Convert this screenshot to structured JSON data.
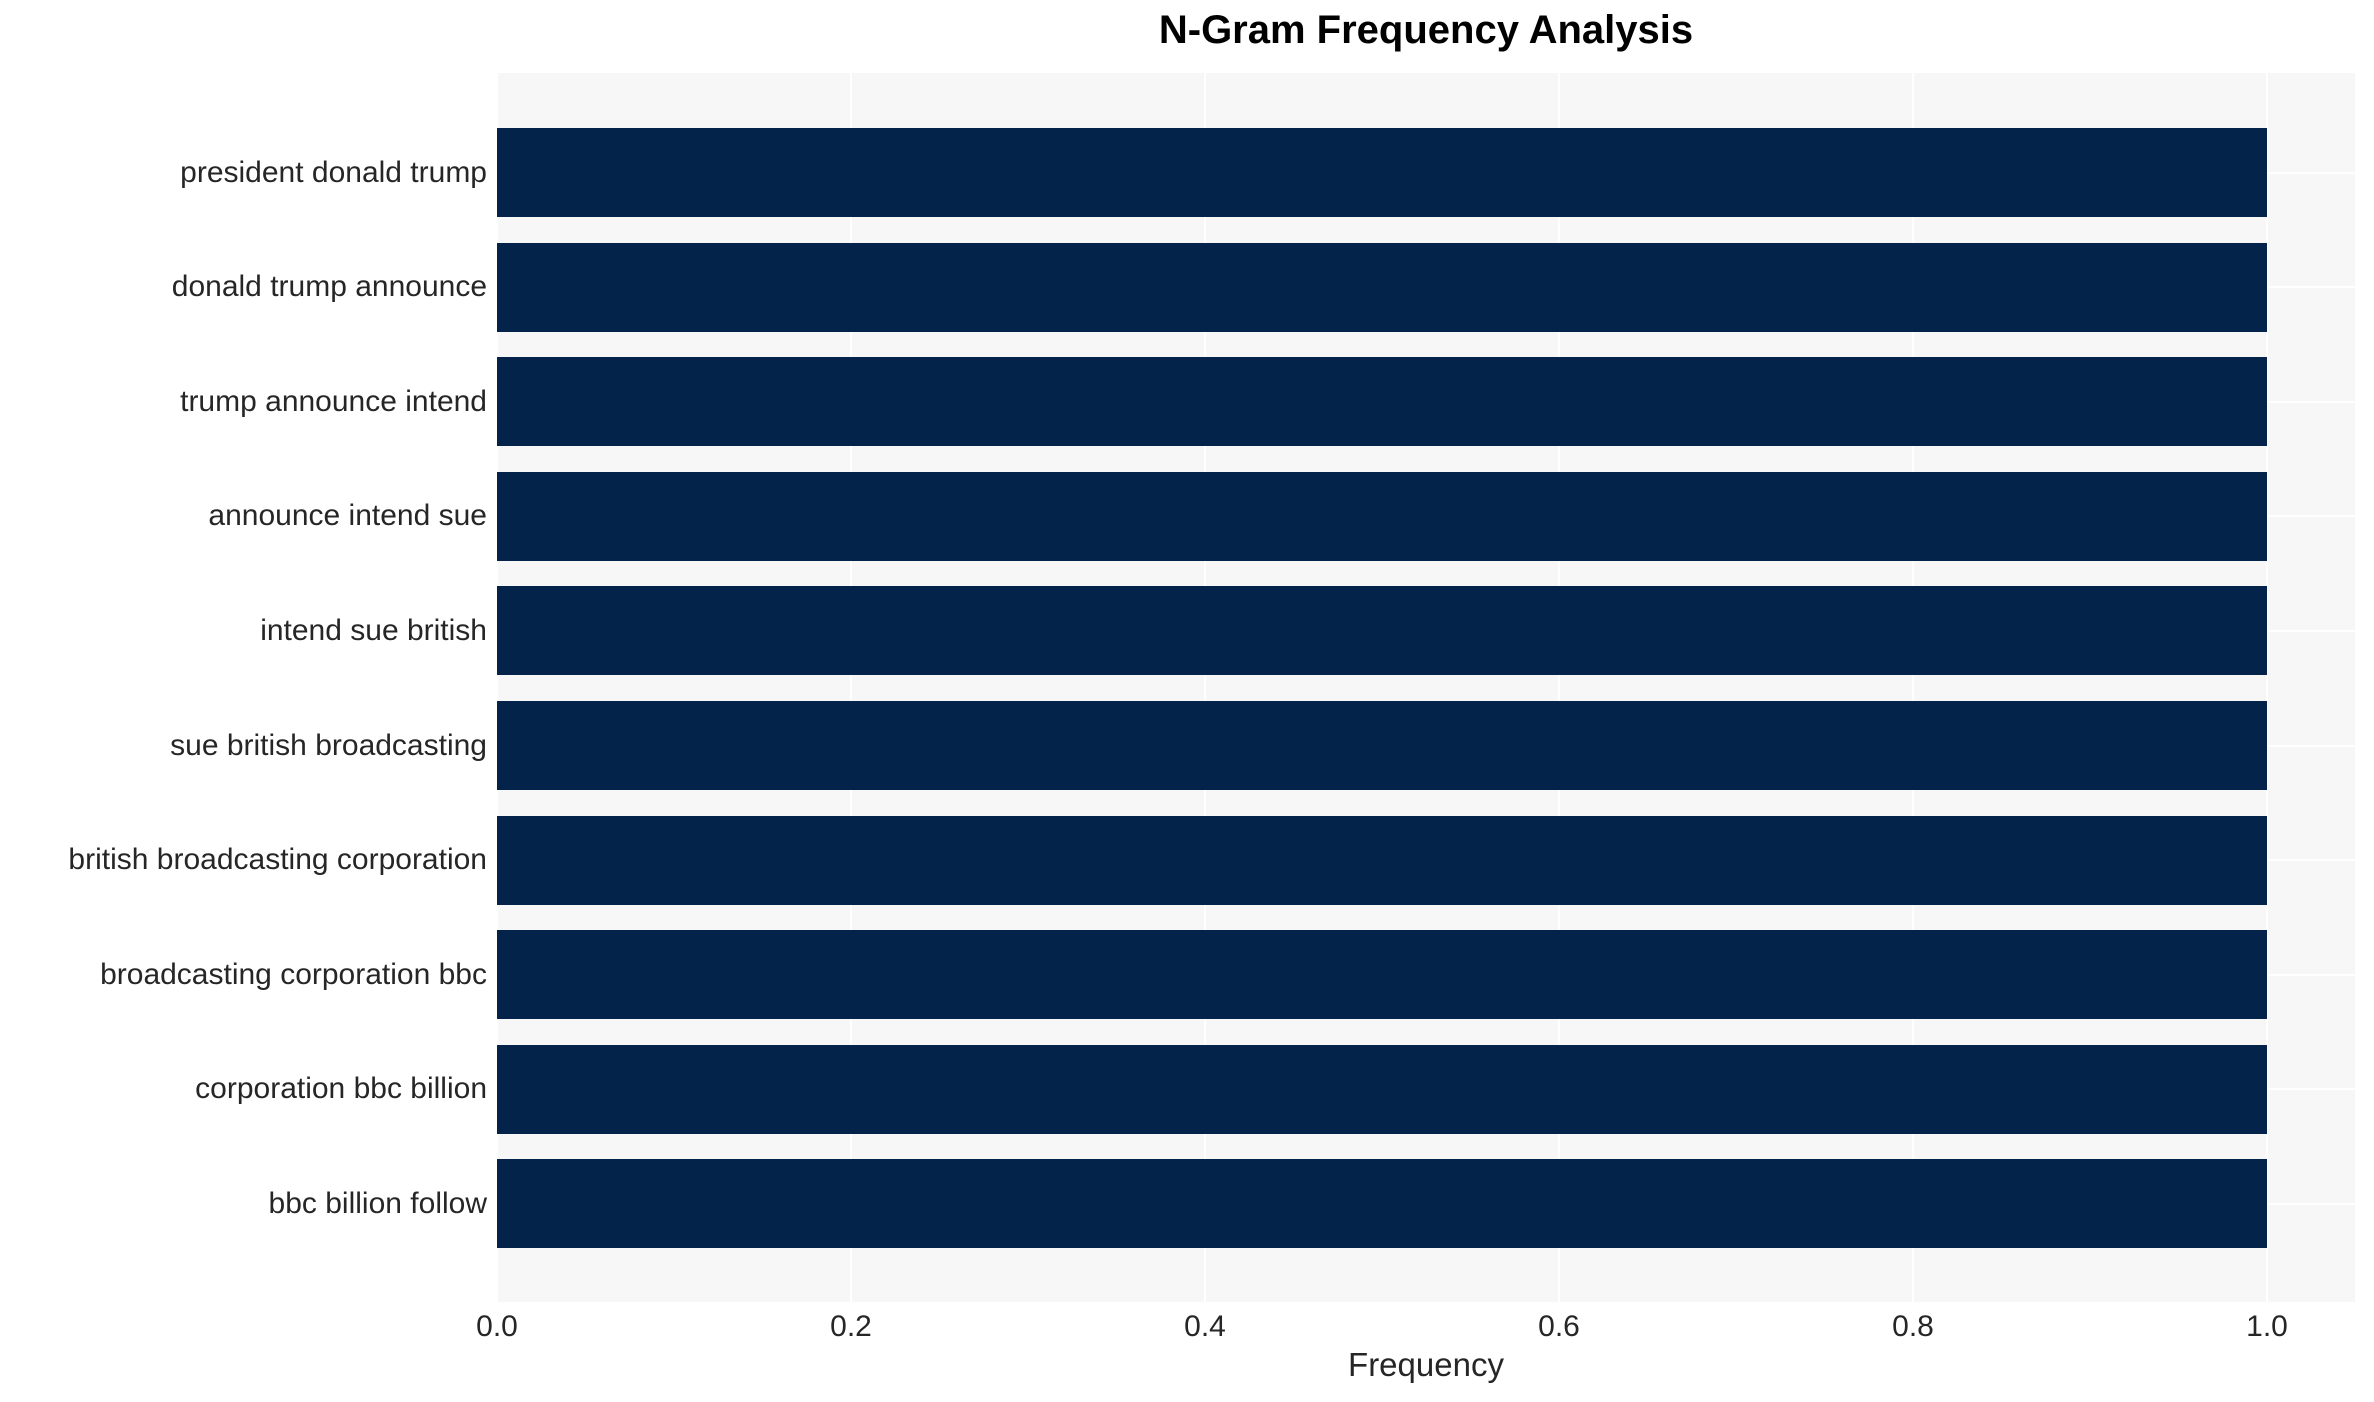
{
  "chart_data": {
    "type": "bar",
    "orientation": "horizontal",
    "title": "N-Gram Frequency Analysis",
    "xlabel": "Frequency",
    "ylabel": "",
    "categories": [
      "president donald trump",
      "donald trump announce",
      "trump announce intend",
      "announce intend sue",
      "intend sue british",
      "sue british broadcasting",
      "british broadcasting corporation",
      "broadcasting corporation bbc",
      "corporation bbc billion",
      "bbc billion follow"
    ],
    "values": [
      1.0,
      1.0,
      1.0,
      1.0,
      1.0,
      1.0,
      1.0,
      1.0,
      1.0,
      1.0
    ],
    "xticks": [
      0.0,
      0.2,
      0.4,
      0.6,
      0.8,
      1.0
    ],
    "xtick_labels": [
      "0.0",
      "0.2",
      "0.4",
      "0.6",
      "0.8",
      "1.0"
    ],
    "xlim": [
      0.0,
      1.05
    ],
    "grid": true,
    "grid_style": "white-on-lightgray",
    "legend": false,
    "colors": {
      "bar": "#03234b",
      "plot_background": "#f7f7f7",
      "figure_background": "#ffffff",
      "gridline": "#ffffff",
      "tick_label": "#262626",
      "title": "#000000"
    }
  }
}
